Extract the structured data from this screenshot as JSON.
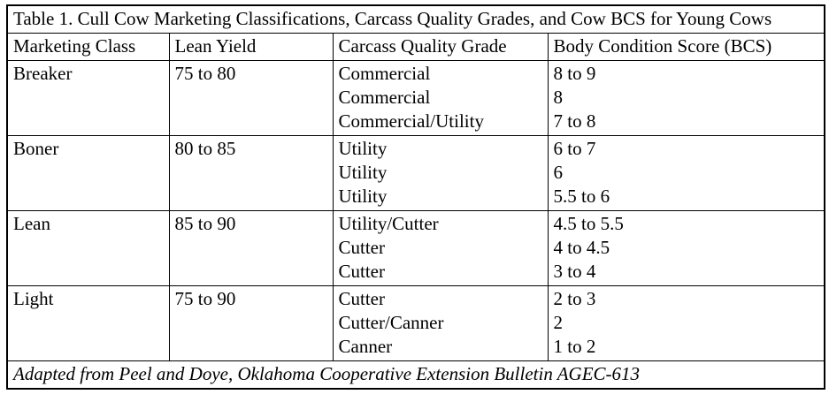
{
  "table": {
    "title": "Table 1. Cull Cow Marketing Classifications, Carcass Quality Grades, and Cow BCS for Young Cows",
    "columns": [
      "Marketing Class",
      "Lean Yield",
      "Carcass Quality Grade",
      "Body Condition Score (BCS)"
    ],
    "rows": [
      {
        "marketing_class": "Breaker",
        "lean_yield": "75 to 80",
        "grades": [
          "Commercial",
          "Commercial",
          "Commercial/Utility"
        ],
        "bcs": [
          "8 to 9",
          "8",
          "7 to 8"
        ]
      },
      {
        "marketing_class": "Boner",
        "lean_yield": "80 to 85",
        "grades": [
          "Utility",
          "Utility",
          "Utility"
        ],
        "bcs": [
          "6 to 7",
          "6",
          "5.5 to 6"
        ]
      },
      {
        "marketing_class": "Lean",
        "lean_yield": "85 to 90",
        "grades": [
          "Utility/Cutter",
          "Cutter",
          "Cutter"
        ],
        "bcs": [
          "4.5 to 5.5",
          "4 to 4.5",
          "3 to 4"
        ]
      },
      {
        "marketing_class": "Light",
        "lean_yield": "75 to 90",
        "grades": [
          "Cutter",
          "Cutter/Canner",
          "Canner"
        ],
        "bcs": [
          "2 to 3",
          "2",
          "1 to 2"
        ]
      }
    ],
    "footer": "Adapted from Peel and Doye, Oklahoma Cooperative Extension Bulletin AGEC-613"
  }
}
